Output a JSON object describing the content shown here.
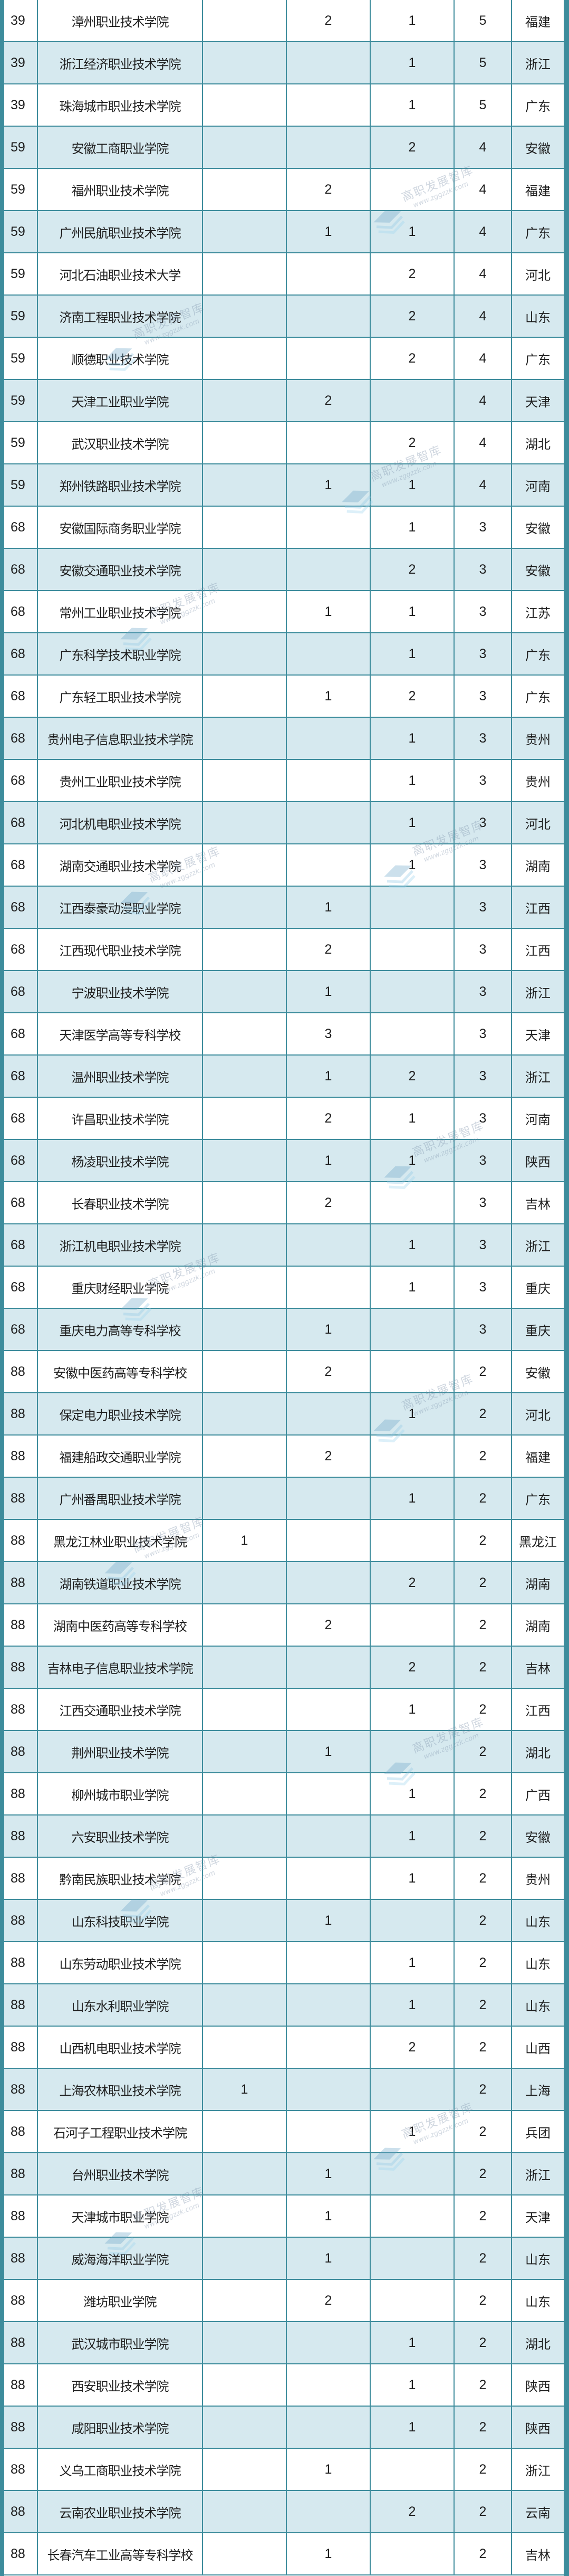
{
  "colors": {
    "border": "#3d8c9c",
    "row_alt": "#d6e9ef",
    "row": "#ffffff"
  },
  "watermark": {
    "name": "高职发展智库",
    "url": "www.zggzzk.com"
  },
  "rows": [
    {
      "rank": "39",
      "name": "漳州职业技术学院",
      "a": "",
      "b": "2",
      "c": "1",
      "total": "5",
      "province": "福建"
    },
    {
      "rank": "39",
      "name": "浙江经济职业技术学院",
      "a": "",
      "b": "",
      "c": "1",
      "total": "5",
      "province": "浙江"
    },
    {
      "rank": "39",
      "name": "珠海城市职业技术学院",
      "a": "",
      "b": "",
      "c": "1",
      "total": "5",
      "province": "广东"
    },
    {
      "rank": "59",
      "name": "安徽工商职业学院",
      "a": "",
      "b": "",
      "c": "2",
      "total": "4",
      "province": "安徽"
    },
    {
      "rank": "59",
      "name": "福州职业技术学院",
      "a": "",
      "b": "2",
      "c": "",
      "total": "4",
      "province": "福建"
    },
    {
      "rank": "59",
      "name": "广州民航职业技术学院",
      "a": "",
      "b": "1",
      "c": "1",
      "total": "4",
      "province": "广东"
    },
    {
      "rank": "59",
      "name": "河北石油职业技术大学",
      "a": "",
      "b": "",
      "c": "2",
      "total": "4",
      "province": "河北"
    },
    {
      "rank": "59",
      "name": "济南工程职业技术学院",
      "a": "",
      "b": "",
      "c": "2",
      "total": "4",
      "province": "山东"
    },
    {
      "rank": "59",
      "name": "顺德职业技术学院",
      "a": "",
      "b": "",
      "c": "2",
      "total": "4",
      "province": "广东"
    },
    {
      "rank": "59",
      "name": "天津工业职业学院",
      "a": "",
      "b": "2",
      "c": "",
      "total": "4",
      "province": "天津"
    },
    {
      "rank": "59",
      "name": "武汉职业技术学院",
      "a": "",
      "b": "",
      "c": "2",
      "total": "4",
      "province": "湖北"
    },
    {
      "rank": "59",
      "name": "郑州铁路职业技术学院",
      "a": "",
      "b": "1",
      "c": "1",
      "total": "4",
      "province": "河南"
    },
    {
      "rank": "68",
      "name": "安徽国际商务职业学院",
      "a": "",
      "b": "",
      "c": "1",
      "total": "3",
      "province": "安徽"
    },
    {
      "rank": "68",
      "name": "安徽交通职业技术学院",
      "a": "",
      "b": "",
      "c": "2",
      "total": "3",
      "province": "安徽"
    },
    {
      "rank": "68",
      "name": "常州工业职业技术学院",
      "a": "",
      "b": "1",
      "c": "1",
      "total": "3",
      "province": "江苏"
    },
    {
      "rank": "68",
      "name": "广东科学技术职业学院",
      "a": "",
      "b": "",
      "c": "1",
      "total": "3",
      "province": "广东"
    },
    {
      "rank": "68",
      "name": "广东轻工职业技术学院",
      "a": "",
      "b": "1",
      "c": "2",
      "total": "3",
      "province": "广东"
    },
    {
      "rank": "68",
      "name": "贵州电子信息职业技术学院",
      "a": "",
      "b": "",
      "c": "1",
      "total": "3",
      "province": "贵州"
    },
    {
      "rank": "68",
      "name": "贵州工业职业技术学院",
      "a": "",
      "b": "",
      "c": "1",
      "total": "3",
      "province": "贵州"
    },
    {
      "rank": "68",
      "name": "河北机电职业技术学院",
      "a": "",
      "b": "",
      "c": "1",
      "total": "3",
      "province": "河北"
    },
    {
      "rank": "68",
      "name": "湖南交通职业技术学院",
      "a": "",
      "b": "",
      "c": "1",
      "total": "3",
      "province": "湖南"
    },
    {
      "rank": "68",
      "name": "江西泰豪动漫职业学院",
      "a": "",
      "b": "1",
      "c": "",
      "total": "3",
      "province": "江西"
    },
    {
      "rank": "68",
      "name": "江西现代职业技术学院",
      "a": "",
      "b": "2",
      "c": "",
      "total": "3",
      "province": "江西"
    },
    {
      "rank": "68",
      "name": "宁波职业技术学院",
      "a": "",
      "b": "1",
      "c": "",
      "total": "3",
      "province": "浙江"
    },
    {
      "rank": "68",
      "name": "天津医学高等专科学校",
      "a": "",
      "b": "3",
      "c": "",
      "total": "3",
      "province": "天津"
    },
    {
      "rank": "68",
      "name": "温州职业技术学院",
      "a": "",
      "b": "1",
      "c": "2",
      "total": "3",
      "province": "浙江"
    },
    {
      "rank": "68",
      "name": "许昌职业技术学院",
      "a": "",
      "b": "2",
      "c": "1",
      "total": "3",
      "province": "河南"
    },
    {
      "rank": "68",
      "name": "杨凌职业技术学院",
      "a": "",
      "b": "1",
      "c": "1",
      "total": "3",
      "province": "陕西"
    },
    {
      "rank": "68",
      "name": "长春职业技术学院",
      "a": "",
      "b": "2",
      "c": "",
      "total": "3",
      "province": "吉林"
    },
    {
      "rank": "68",
      "name": "浙江机电职业技术学院",
      "a": "",
      "b": "",
      "c": "1",
      "total": "3",
      "province": "浙江"
    },
    {
      "rank": "68",
      "name": "重庆财经职业学院",
      "a": "",
      "b": "",
      "c": "1",
      "total": "3",
      "province": "重庆"
    },
    {
      "rank": "68",
      "name": "重庆电力高等专科学校",
      "a": "",
      "b": "1",
      "c": "",
      "total": "3",
      "province": "重庆"
    },
    {
      "rank": "88",
      "name": "安徽中医药高等专科学校",
      "a": "",
      "b": "2",
      "c": "",
      "total": "2",
      "province": "安徽"
    },
    {
      "rank": "88",
      "name": "保定电力职业技术学院",
      "a": "",
      "b": "",
      "c": "1",
      "total": "2",
      "province": "河北"
    },
    {
      "rank": "88",
      "name": "福建船政交通职业学院",
      "a": "",
      "b": "2",
      "c": "",
      "total": "2",
      "province": "福建"
    },
    {
      "rank": "88",
      "name": "广州番禺职业技术学院",
      "a": "",
      "b": "",
      "c": "1",
      "total": "2",
      "province": "广东"
    },
    {
      "rank": "88",
      "name": "黑龙江林业职业技术学院",
      "a": "1",
      "b": "",
      "c": "",
      "total": "2",
      "province": "黑龙江"
    },
    {
      "rank": "88",
      "name": "湖南铁道职业技术学院",
      "a": "",
      "b": "",
      "c": "2",
      "total": "2",
      "province": "湖南"
    },
    {
      "rank": "88",
      "name": "湖南中医药高等专科学校",
      "a": "",
      "b": "2",
      "c": "",
      "total": "2",
      "province": "湖南"
    },
    {
      "rank": "88",
      "name": "吉林电子信息职业技术学院",
      "a": "",
      "b": "",
      "c": "2",
      "total": "2",
      "province": "吉林"
    },
    {
      "rank": "88",
      "name": "江西交通职业技术学院",
      "a": "",
      "b": "",
      "c": "1",
      "total": "2",
      "province": "江西"
    },
    {
      "rank": "88",
      "name": "荆州职业技术学院",
      "a": "",
      "b": "1",
      "c": "",
      "total": "2",
      "province": "湖北"
    },
    {
      "rank": "88",
      "name": "柳州城市职业学院",
      "a": "",
      "b": "",
      "c": "1",
      "total": "2",
      "province": "广西"
    },
    {
      "rank": "88",
      "name": "六安职业技术学院",
      "a": "",
      "b": "",
      "c": "1",
      "total": "2",
      "province": "安徽"
    },
    {
      "rank": "88",
      "name": "黔南民族职业技术学院",
      "a": "",
      "b": "",
      "c": "1",
      "total": "2",
      "province": "贵州"
    },
    {
      "rank": "88",
      "name": "山东科技职业学院",
      "a": "",
      "b": "1",
      "c": "",
      "total": "2",
      "province": "山东"
    },
    {
      "rank": "88",
      "name": "山东劳动职业技术学院",
      "a": "",
      "b": "",
      "c": "1",
      "total": "2",
      "province": "山东"
    },
    {
      "rank": "88",
      "name": "山东水利职业学院",
      "a": "",
      "b": "",
      "c": "1",
      "total": "2",
      "province": "山东"
    },
    {
      "rank": "88",
      "name": "山西机电职业技术学院",
      "a": "",
      "b": "",
      "c": "2",
      "total": "2",
      "province": "山西"
    },
    {
      "rank": "88",
      "name": "上海农林职业技术学院",
      "a": "1",
      "b": "",
      "c": "",
      "total": "2",
      "province": "上海"
    },
    {
      "rank": "88",
      "name": "石河子工程职业技术学院",
      "a": "",
      "b": "",
      "c": "1",
      "total": "2",
      "province": "兵团"
    },
    {
      "rank": "88",
      "name": "台州职业技术学院",
      "a": "",
      "b": "1",
      "c": "",
      "total": "2",
      "province": "浙江"
    },
    {
      "rank": "88",
      "name": "天津城市职业学院",
      "a": "",
      "b": "1",
      "c": "",
      "total": "2",
      "province": "天津"
    },
    {
      "rank": "88",
      "name": "威海海洋职业学院",
      "a": "",
      "b": "1",
      "c": "",
      "total": "2",
      "province": "山东"
    },
    {
      "rank": "88",
      "name": "潍坊职业学院",
      "a": "",
      "b": "2",
      "c": "",
      "total": "2",
      "province": "山东"
    },
    {
      "rank": "88",
      "name": "武汉城市职业学院",
      "a": "",
      "b": "",
      "c": "1",
      "total": "2",
      "province": "湖北"
    },
    {
      "rank": "88",
      "name": "西安职业技术学院",
      "a": "",
      "b": "",
      "c": "1",
      "total": "2",
      "province": "陕西"
    },
    {
      "rank": "88",
      "name": "咸阳职业技术学院",
      "a": "",
      "b": "",
      "c": "1",
      "total": "2",
      "province": "陕西"
    },
    {
      "rank": "88",
      "name": "义乌工商职业技术学院",
      "a": "",
      "b": "1",
      "c": "",
      "total": "2",
      "province": "浙江"
    },
    {
      "rank": "88",
      "name": "云南农业职业技术学院",
      "a": "",
      "b": "",
      "c": "2",
      "total": "2",
      "province": "云南"
    },
    {
      "rank": "88",
      "name": "长春汽车工业高等专科学校",
      "a": "",
      "b": "1",
      "c": "",
      "total": "2",
      "province": "吉林"
    }
  ]
}
